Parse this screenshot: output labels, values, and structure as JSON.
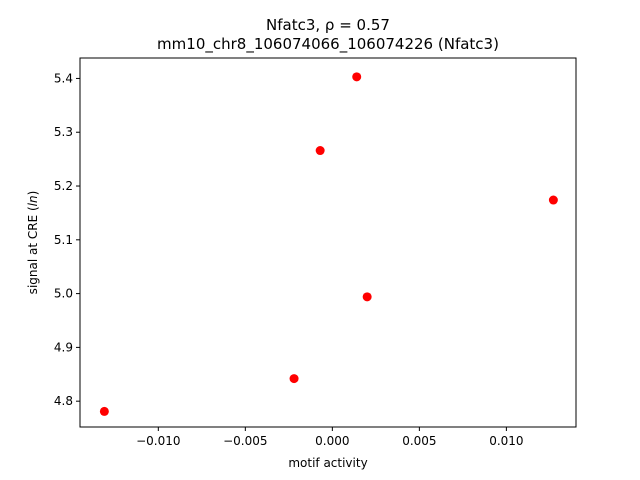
{
  "chart_data": {
    "type": "scatter",
    "title": "Nfatc3, ρ = 0.57",
    "subtitle": "mm10_chr8_106074066_106074226 (Nfatc3)",
    "xlabel": "motif activity",
    "ylabel_parts": [
      "signal at CRE (",
      "ln",
      ")"
    ],
    "xlim": [
      -0.0145,
      0.014
    ],
    "ylim": [
      4.752,
      5.438
    ],
    "x_ticks": [
      -0.01,
      -0.005,
      0.0,
      0.005,
      0.01
    ],
    "x_tick_labels": [
      "−0.010",
      "−0.005",
      "0.000",
      "0.005",
      "0.010"
    ],
    "y_ticks": [
      4.8,
      4.9,
      5.0,
      5.1,
      5.2,
      5.3,
      5.4
    ],
    "y_tick_labels": [
      "4.8",
      "4.9",
      "5.0",
      "5.1",
      "5.2",
      "5.3",
      "5.4"
    ],
    "marker_color": "#ff0000",
    "grid": false,
    "points": [
      {
        "x": -0.0131,
        "y": 4.781
      },
      {
        "x": -0.0022,
        "y": 4.842
      },
      {
        "x": -0.0007,
        "y": 5.266
      },
      {
        "x": 0.0014,
        "y": 5.403
      },
      {
        "x": 0.002,
        "y": 4.994
      },
      {
        "x": 0.0127,
        "y": 5.174
      }
    ]
  }
}
